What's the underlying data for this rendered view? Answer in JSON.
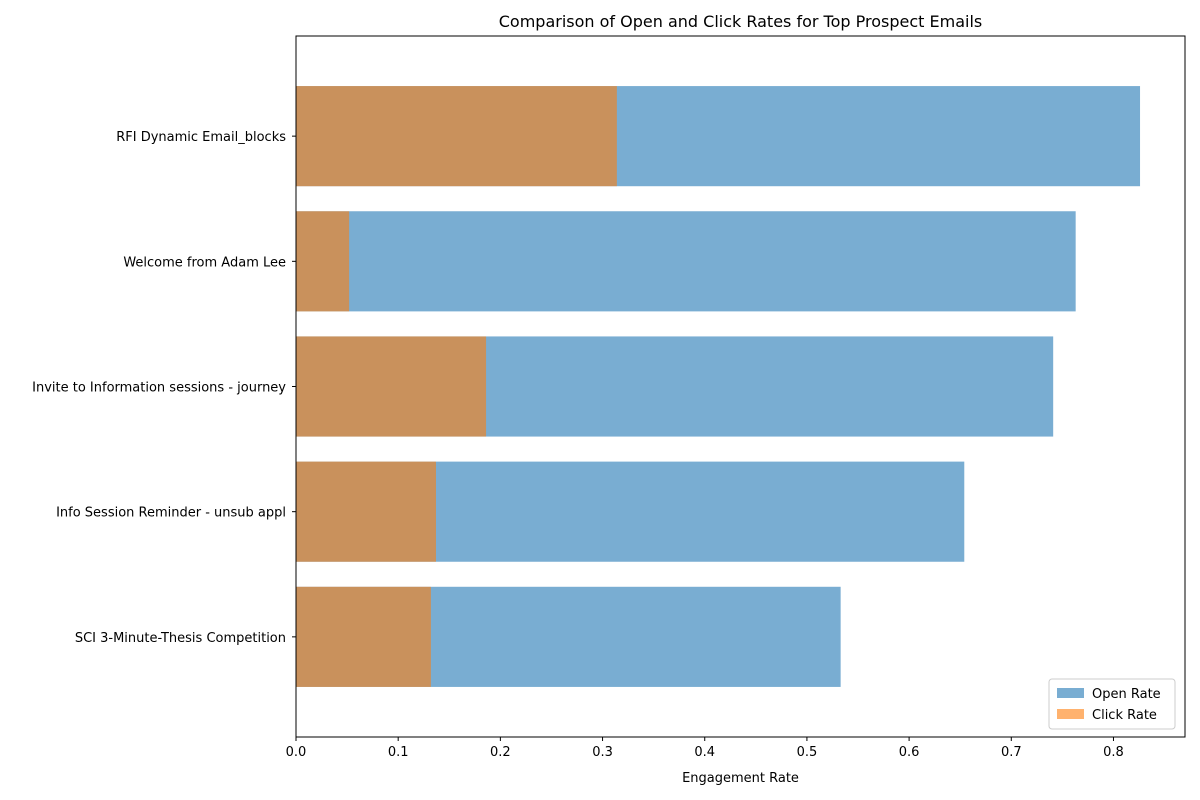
{
  "chart_data": {
    "type": "bar",
    "orientation": "horizontal",
    "title": "Comparison of Open and Click Rates for Top Prospect Emails",
    "xlabel": "Engagement Rate",
    "ylabel": "",
    "xlim": [
      0,
      0.87
    ],
    "xticks": [
      "0.0",
      "0.1",
      "0.2",
      "0.3",
      "0.4",
      "0.5",
      "0.6",
      "0.7",
      "0.8"
    ],
    "categories": [
      "RFI Dynamic Email_blocks",
      "Welcome from Adam Lee",
      "Invite to Information sessions - journey",
      "Info Session Reminder - unsub appl",
      "SCI 3-Minute-Thesis Competition"
    ],
    "series": [
      {
        "name": "Open Rate",
        "color": "#1f77b4",
        "opacity": 0.6,
        "values": [
          0.826,
          0.763,
          0.741,
          0.654,
          0.533
        ]
      },
      {
        "name": "Click Rate",
        "color": "#ff7f0e",
        "opacity": 0.6,
        "values": [
          0.314,
          0.052,
          0.186,
          0.137,
          0.132
        ]
      }
    ],
    "grid": false,
    "legend": "bottom-right"
  }
}
